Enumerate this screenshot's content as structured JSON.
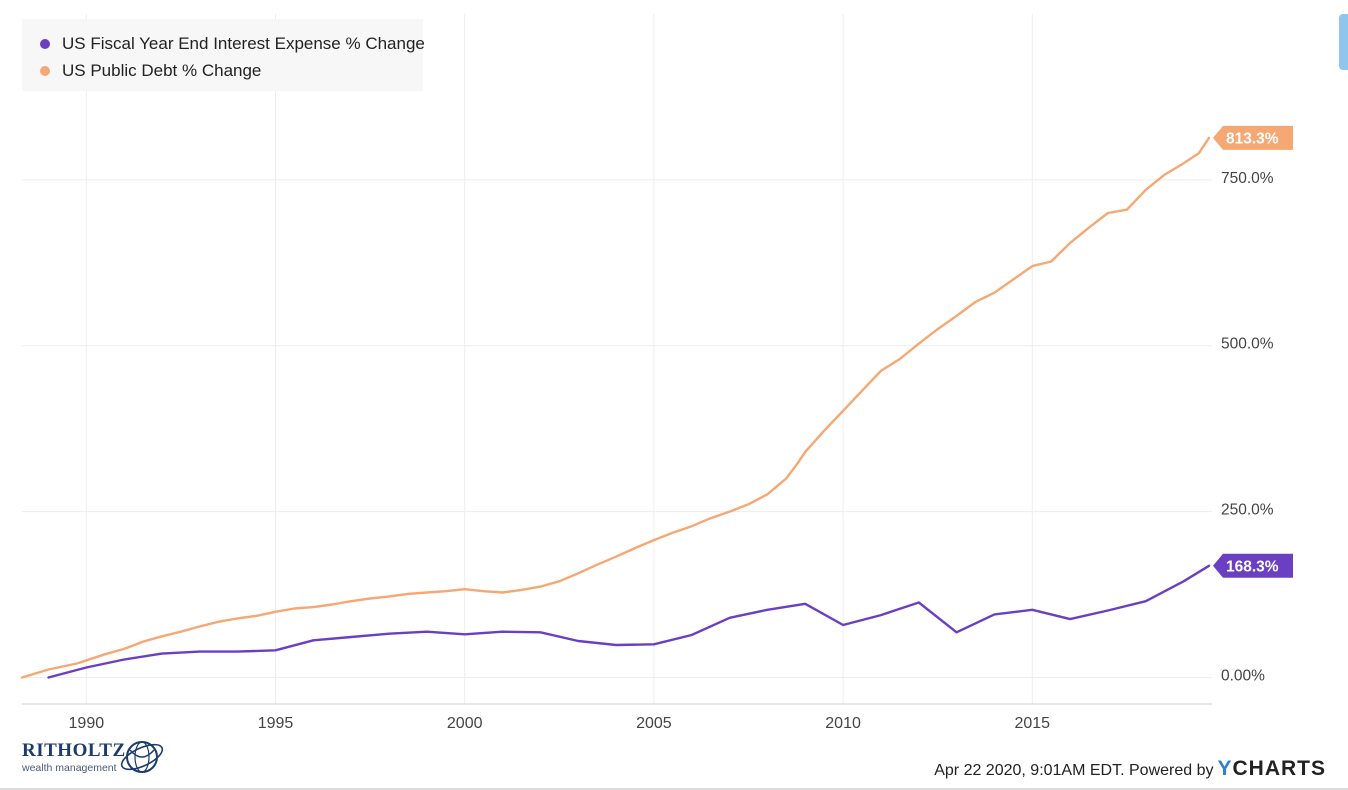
{
  "chart_data": {
    "type": "line",
    "title": "",
    "xlabel": "",
    "ylabel": "",
    "xlim": [
      1988.3,
      2019.75
    ],
    "ylim": [
      -40,
      1000
    ],
    "x_ticks": [
      1990,
      1995,
      2000,
      2005,
      2010,
      2015
    ],
    "x_tick_labels": [
      "1990",
      "1995",
      "2000",
      "2005",
      "2010",
      "2015"
    ],
    "y_ticks": [
      0,
      250,
      500,
      750
    ],
    "y_tick_labels": [
      "0.00%",
      "250.0%",
      "500.0%",
      "750.0%"
    ],
    "y_axis_position": "right",
    "grid": true,
    "legend_position": "top-left",
    "series": [
      {
        "name": "US Fiscal Year End Interest Expense % Change",
        "color": "#6a3fc2",
        "end_label": "168.3%",
        "points": [
          [
            1989,
            0
          ],
          [
            1990,
            15
          ],
          [
            1991,
            27
          ],
          [
            1992,
            36
          ],
          [
            1993,
            39
          ],
          [
            1994,
            39
          ],
          [
            1995,
            41
          ],
          [
            1996,
            56
          ],
          [
            1997,
            61
          ],
          [
            1998,
            66
          ],
          [
            1999,
            69
          ],
          [
            2000,
            65
          ],
          [
            2001,
            69
          ],
          [
            2002,
            68
          ],
          [
            2003,
            55
          ],
          [
            2004,
            49
          ],
          [
            2005,
            50
          ],
          [
            2006,
            64
          ],
          [
            2007,
            90
          ],
          [
            2008,
            102
          ],
          [
            2009,
            111
          ],
          [
            2010,
            79
          ],
          [
            2011,
            94
          ],
          [
            2012,
            113
          ],
          [
            2013,
            68
          ],
          [
            2014,
            95
          ],
          [
            2015,
            102
          ],
          [
            2016,
            88
          ],
          [
            2017,
            101
          ],
          [
            2018,
            115
          ],
          [
            2019,
            145
          ],
          [
            2019.67,
            168.3
          ]
        ]
      },
      {
        "name": "US Public Debt % Change",
        "color": "#f5a873",
        "end_label": "813.3%",
        "points": [
          [
            1988.3,
            0
          ],
          [
            1989,
            12
          ],
          [
            1989.75,
            21
          ],
          [
            1990.5,
            35
          ],
          [
            1991,
            43
          ],
          [
            1991.5,
            54
          ],
          [
            1992,
            62
          ],
          [
            1992.5,
            69
          ],
          [
            1993,
            77
          ],
          [
            1993.5,
            84
          ],
          [
            1994,
            89
          ],
          [
            1994.5,
            93
          ],
          [
            1995,
            99
          ],
          [
            1995.5,
            104
          ],
          [
            1996,
            106
          ],
          [
            1996.5,
            110
          ],
          [
            1997,
            115
          ],
          [
            1997.5,
            119
          ],
          [
            1998,
            122
          ],
          [
            1998.5,
            126
          ],
          [
            1999,
            128
          ],
          [
            1999.5,
            130
          ],
          [
            2000,
            133
          ],
          [
            2000.5,
            130
          ],
          [
            2001,
            128
          ],
          [
            2001.5,
            132
          ],
          [
            2002,
            137
          ],
          [
            2002.5,
            145
          ],
          [
            2003,
            157
          ],
          [
            2003.5,
            170
          ],
          [
            2004,
            182
          ],
          [
            2004.5,
            195
          ],
          [
            2005,
            207
          ],
          [
            2005.5,
            218
          ],
          [
            2006,
            228
          ],
          [
            2006.5,
            240
          ],
          [
            2007,
            250
          ],
          [
            2007.5,
            261
          ],
          [
            2008,
            276
          ],
          [
            2008.5,
            300
          ],
          [
            2008.8,
            323
          ],
          [
            2009,
            340
          ],
          [
            2009.5,
            372
          ],
          [
            2010,
            402
          ],
          [
            2010.5,
            432
          ],
          [
            2011,
            462
          ],
          [
            2011.5,
            480
          ],
          [
            2012,
            503
          ],
          [
            2012.5,
            525
          ],
          [
            2013,
            545
          ],
          [
            2013.5,
            566
          ],
          [
            2014,
            580
          ],
          [
            2014.5,
            600
          ],
          [
            2015,
            620
          ],
          [
            2015.5,
            627
          ],
          [
            2016,
            655
          ],
          [
            2016.5,
            678
          ],
          [
            2017,
            700
          ],
          [
            2017.5,
            705
          ],
          [
            2018,
            735
          ],
          [
            2018.5,
            758
          ],
          [
            2019,
            775
          ],
          [
            2019.4,
            790
          ],
          [
            2019.67,
            813.3
          ]
        ]
      }
    ]
  },
  "legend": {
    "items": [
      {
        "label": "US Fiscal Year End Interest Expense % Change",
        "color": "#6a3fc2"
      },
      {
        "label": "US Public Debt % Change",
        "color": "#f5a873"
      }
    ]
  },
  "brand": {
    "name": "RITHOLTZ",
    "subtitle": "wealth management"
  },
  "footer": {
    "timestamp_text": "Apr 22 2020, 9:01AM EDT. Powered by",
    "provider_y": "Y",
    "provider_rest": "CHARTS"
  }
}
